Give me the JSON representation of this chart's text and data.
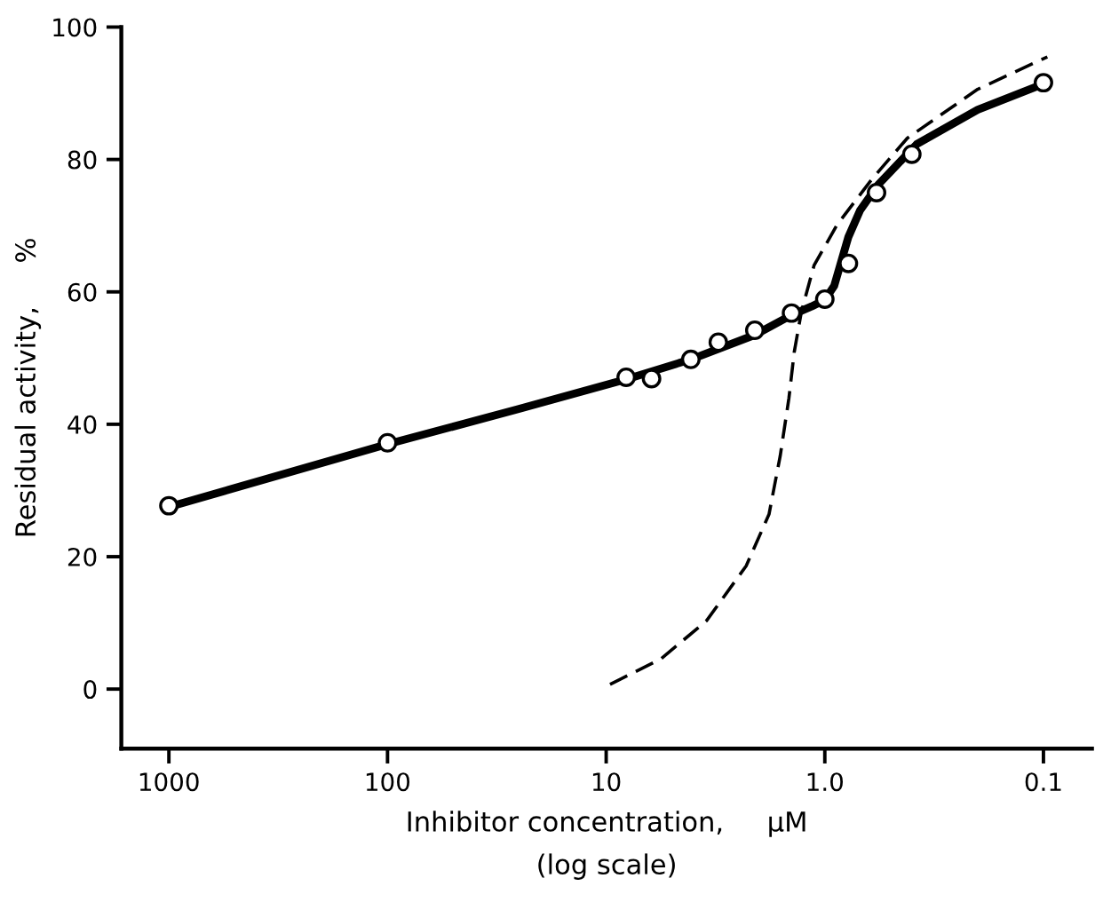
{
  "chart_data": {
    "type": "line",
    "xlabel": "Inhibitor concentration,     μM\n(log scale)",
    "ylabel": "Residual activity,     %",
    "log": "x",
    "xlim": [
      1650,
      0.06
    ],
    "ylim": [
      -9,
      100
    ],
    "xticks": [
      1000,
      100,
      10,
      {
        "value": 1,
        "label": "1.0"
      },
      0.1
    ],
    "yticks": [
      0,
      20,
      40,
      60,
      80,
      100
    ],
    "grid": false,
    "series": [
      {
        "color": "#000000",
        "line_style": "solid",
        "marker": "none",
        "x": [
          1000,
          100,
          25.2,
          8.1,
          4.1,
          2.09,
          1.42,
          1.15,
          1.0,
          0.906,
          0.78,
          0.69,
          0.57,
          0.38,
          0.2,
          0.1
        ],
        "values": [
          27.5,
          37,
          42.3,
          46.8,
          49.8,
          53.5,
          56.5,
          57.8,
          58.8,
          60.9,
          68.3,
          72.3,
          76.2,
          82.3,
          87.5,
          91.4
        ]
      },
      {
        "color": "#000000",
        "line_style": "dashed",
        "marker": "none",
        "x": [
          9.6,
          5.6,
          3.48,
          2.29,
          1.8,
          1.6,
          1.46,
          1.38,
          1.28,
          1.12,
          0.88,
          0.61,
          0.42,
          0.2,
          0.096
        ],
        "values": [
          0.7,
          4.6,
          10.3,
          18.6,
          26.4,
          35.2,
          43.9,
          50.9,
          57.0,
          64.0,
          70.1,
          77.0,
          83.2,
          90.6,
          95.5
        ]
      },
      {
        "type": "scatter",
        "color": "#000000",
        "marker": "circle",
        "x": [
          1000,
          100,
          8.1,
          6.2,
          4.1,
          3.07,
          2.09,
          1.42,
          1.0,
          0.78,
          0.58,
          0.4,
          0.1
        ],
        "values": [
          27.7,
          37.2,
          47.1,
          46.9,
          49.8,
          52.4,
          54.2,
          56.8,
          58.9,
          64.3,
          75.0,
          80.8,
          91.6
        ]
      }
    ]
  }
}
